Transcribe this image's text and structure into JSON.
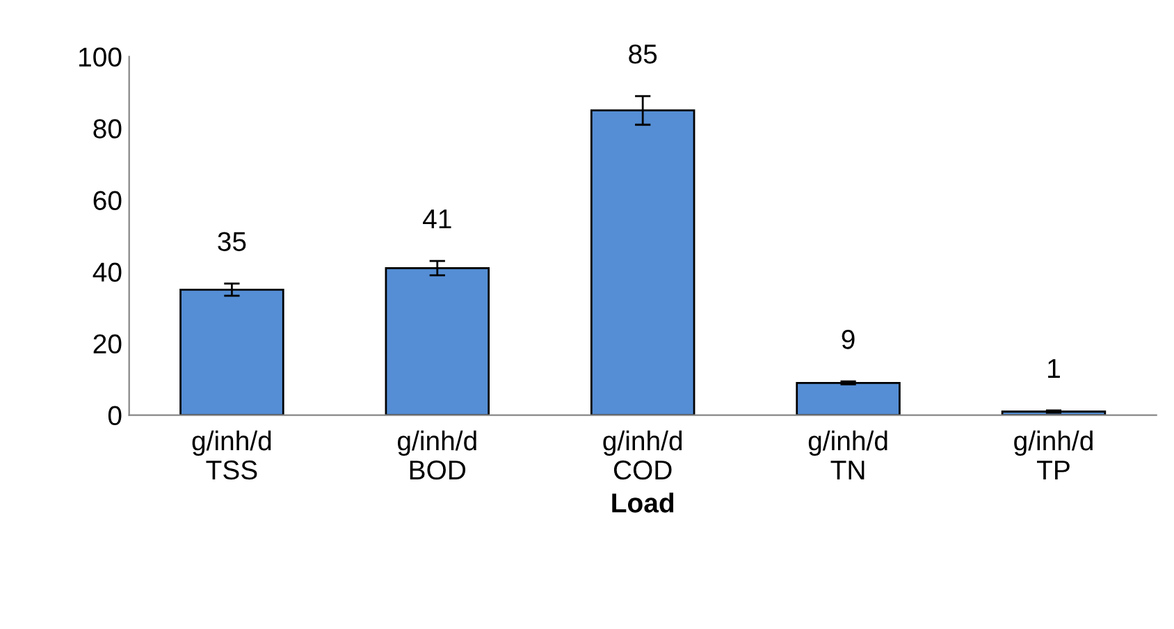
{
  "chart_data": {
    "type": "bar",
    "xlabel": "Load",
    "categories": [
      "g/inh/d\nTSS",
      "g/inh/d\nBOD",
      "g/inh/d\nCOD",
      "g/inh/d\nTN",
      "g/inh/d\nTP"
    ],
    "values": [
      35,
      41,
      85,
      9,
      1
    ],
    "errors": [
      1.7,
      2,
      4,
      0.4,
      0.3
    ],
    "color": "#558ed5",
    "ylim": [
      0,
      100
    ],
    "yticks": [
      0,
      20,
      40,
      60,
      80,
      100
    ],
    "data_labels": true,
    "grid": false,
    "legend": false
  }
}
